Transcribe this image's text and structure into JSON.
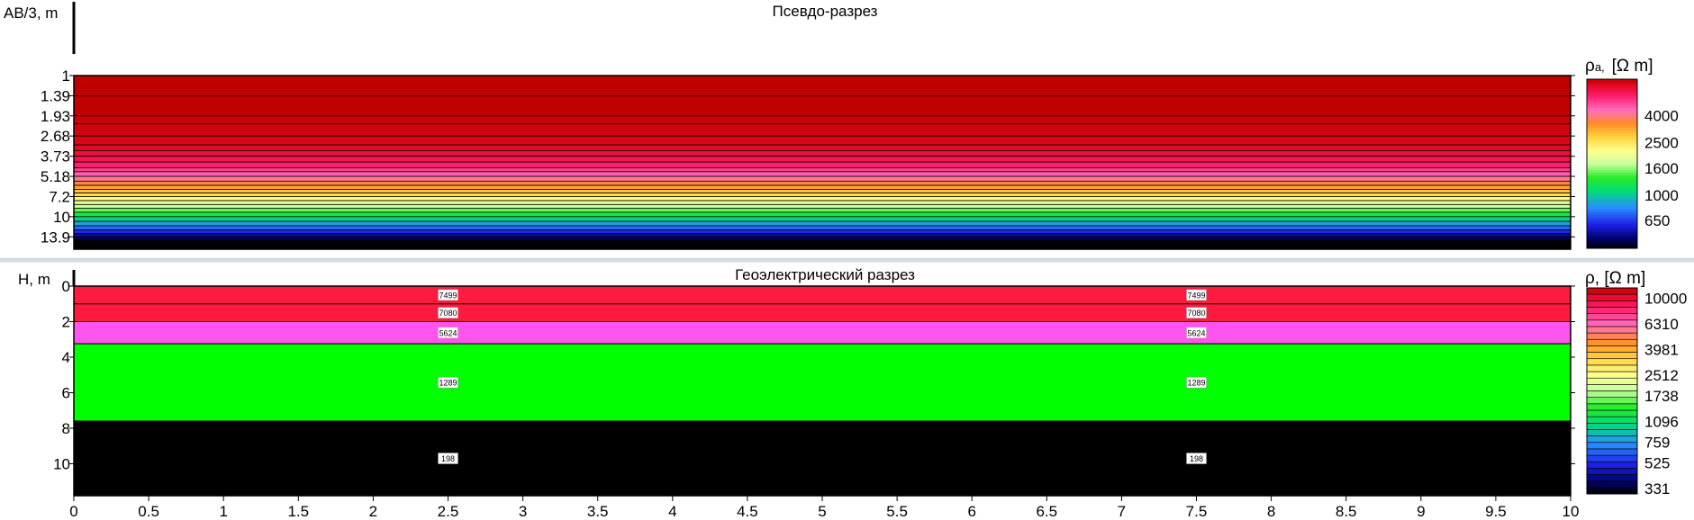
{
  "chart_data": [
    {
      "type": "heatmap",
      "title": "Псевдо-разрез",
      "ylabel": "AB/3, m",
      "ylim": [
        1,
        17
      ],
      "y_scale": "log",
      "y_inverted": true,
      "xlim": [
        0,
        10
      ],
      "y_ticks": [
        "1",
        "1.39",
        "1.93",
        "2.68",
        "3.73",
        "5.18",
        "7.2",
        "10",
        "13.9"
      ],
      "y_tick_values": [
        1,
        1.39,
        1.93,
        2.68,
        3.73,
        5.18,
        7.2,
        10,
        13.9
      ],
      "rows": [
        {
          "ab3": 1.0,
          "rho": 7500
        },
        {
          "ab3": 1.39,
          "rho": 7480
        },
        {
          "ab3": 1.93,
          "rho": 7300
        },
        {
          "ab3": 2.2,
          "rho": 7150
        },
        {
          "ab3": 2.68,
          "rho": 6950
        },
        {
          "ab3": 3.1,
          "rho": 6700
        },
        {
          "ab3": 3.4,
          "rho": 6400
        },
        {
          "ab3": 3.73,
          "rho": 6050
        },
        {
          "ab3": 4.1,
          "rho": 5600
        },
        {
          "ab3": 4.5,
          "rho": 5100
        },
        {
          "ab3": 4.8,
          "rho": 4600
        },
        {
          "ab3": 5.18,
          "rho": 4100
        },
        {
          "ab3": 5.6,
          "rho": 3650
        },
        {
          "ab3": 6.0,
          "rho": 3250
        },
        {
          "ab3": 6.4,
          "rho": 2900
        },
        {
          "ab3": 6.8,
          "rho": 2600
        },
        {
          "ab3": 7.2,
          "rho": 2300
        },
        {
          "ab3": 7.7,
          "rho": 2000
        },
        {
          "ab3": 8.2,
          "rho": 1750
        },
        {
          "ab3": 8.7,
          "rho": 1500
        },
        {
          "ab3": 9.3,
          "rho": 1250
        },
        {
          "ab3": 10.0,
          "rho": 1050
        },
        {
          "ab3": 10.8,
          "rho": 880
        },
        {
          "ab3": 11.6,
          "rho": 740
        },
        {
          "ab3": 12.4,
          "rho": 620
        },
        {
          "ab3": 13.2,
          "rho": 520
        },
        {
          "ab3": 13.9,
          "rho": 450
        },
        {
          "ab3": 14.8,
          "rho": 390
        },
        {
          "ab3": 15.8,
          "rho": 340
        }
      ],
      "colorbar": {
        "label": "ρa, [Ω m]",
        "label_main": "ρ",
        "label_sub": "a,",
        "label_unit": "[Ω m]",
        "ticks": [
          "4000",
          "2500",
          "1600",
          "1000",
          "650"
        ],
        "tick_values": [
          4000,
          2500,
          1600,
          1000,
          650
        ],
        "range": [
          400,
          7500
        ]
      }
    },
    {
      "type": "heatmap",
      "title": "Геоэлектрический разрез",
      "xlabel": "",
      "ylabel": "H, m",
      "xlim": [
        0,
        10
      ],
      "ylim": [
        0,
        11.8
      ],
      "y_inverted": true,
      "x_ticks": [
        "0",
        "0.5",
        "1",
        "1.5",
        "2",
        "2.5",
        "3",
        "3.5",
        "4",
        "4.5",
        "5",
        "5.5",
        "6",
        "6.5",
        "7",
        "7.5",
        "8",
        "8.5",
        "9",
        "9.5",
        "10"
      ],
      "x_tick_values": [
        0,
        0.5,
        1,
        1.5,
        2,
        2.5,
        3,
        3.5,
        4,
        4.5,
        5,
        5.5,
        6,
        6.5,
        7,
        7.5,
        8,
        8.5,
        9,
        9.5,
        10
      ],
      "y_ticks": [
        "0",
        "2",
        "4",
        "6",
        "8",
        "10"
      ],
      "y_tick_values": [
        0,
        2,
        4,
        6,
        8,
        10
      ],
      "layers": [
        {
          "top": 0.0,
          "bottom": 1.0,
          "rho": "7499",
          "color": "#ff1a40"
        },
        {
          "top": 1.0,
          "bottom": 2.0,
          "rho": "7080",
          "color": "#ff1a40"
        },
        {
          "top": 2.0,
          "bottom": 3.25,
          "rho": "5624",
          "color": "#ff55ee"
        },
        {
          "top": 3.25,
          "bottom": 7.6,
          "rho": "1289",
          "color": "#00ff00"
        },
        {
          "top": 7.6,
          "bottom": 11.8,
          "rho": "198",
          "color": "#000000"
        }
      ],
      "label_x_positions": [
        2.5,
        7.5
      ],
      "colorbar": {
        "label": "ρ, [Ω m]",
        "ticks": [
          "10000",
          "6310",
          "3981",
          "2512",
          "1738",
          "1096",
          "759",
          "525",
          "331"
        ],
        "tick_values": [
          10000,
          6310,
          3981,
          2512,
          1738,
          1096,
          759,
          525,
          331
        ],
        "range": [
          300,
          12000
        ]
      }
    }
  ]
}
